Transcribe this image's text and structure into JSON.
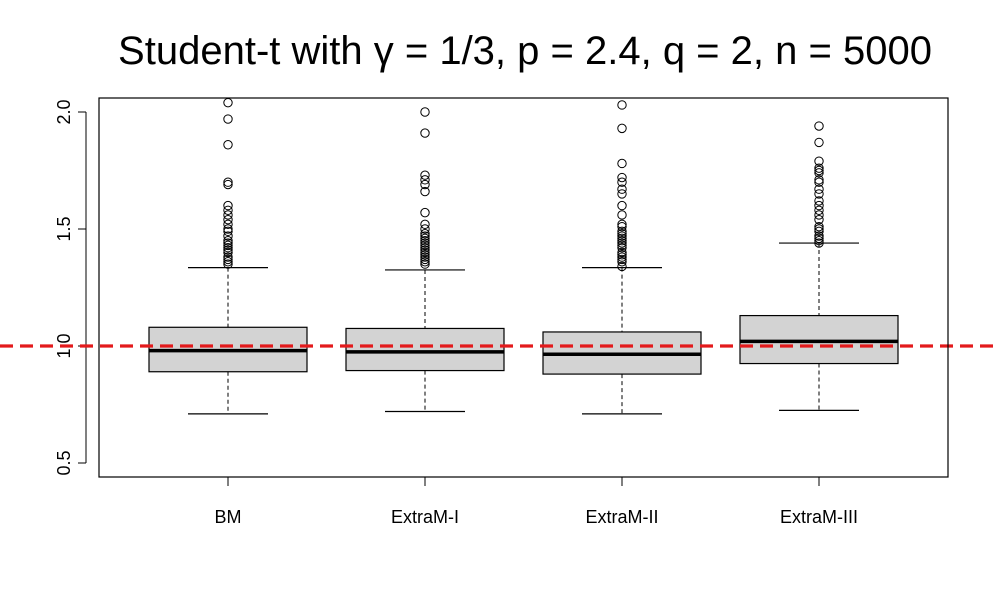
{
  "chart_data": {
    "type": "box",
    "title": "Student-t with γ = 1/3, p = 2.4, q = 2, n = 5000",
    "xlabel": "",
    "ylabel": "",
    "ylim": [
      0.5,
      2.05
    ],
    "yticks": [
      "0.5",
      "1.0",
      "1.5",
      "2.0"
    ],
    "categories": [
      "BM",
      "ExtraM-I",
      "ExtraM-II",
      "ExtraM-III"
    ],
    "reference_line": {
      "y": 1.0,
      "color": "#e31a1c",
      "style": "dashed"
    },
    "box_fill": "#d3d3d3",
    "boxes": [
      {
        "name": "BM",
        "whisker_low": 0.71,
        "q1": 0.89,
        "median": 0.98,
        "q3": 1.08,
        "whisker_high": 1.335,
        "outliers": [
          1.35,
          1.36,
          1.37,
          1.38,
          1.4,
          1.41,
          1.42,
          1.43,
          1.44,
          1.45,
          1.47,
          1.49,
          1.5,
          1.52,
          1.54,
          1.56,
          1.58,
          1.6,
          1.69,
          1.7,
          1.86,
          1.97,
          2.04
        ]
      },
      {
        "name": "ExtraM-I",
        "whisker_low": 0.72,
        "q1": 0.895,
        "median": 0.975,
        "q3": 1.075,
        "whisker_high": 1.325,
        "outliers": [
          1.35,
          1.36,
          1.37,
          1.38,
          1.39,
          1.4,
          1.41,
          1.42,
          1.43,
          1.44,
          1.45,
          1.46,
          1.47,
          1.48,
          1.5,
          1.52,
          1.57,
          1.66,
          1.69,
          1.71,
          1.73,
          1.91,
          2.0
        ]
      },
      {
        "name": "ExtraM-II",
        "whisker_low": 0.71,
        "q1": 0.88,
        "median": 0.965,
        "q3": 1.06,
        "whisker_high": 1.335,
        "outliers": [
          1.34,
          1.36,
          1.37,
          1.38,
          1.39,
          1.4,
          1.42,
          1.43,
          1.44,
          1.45,
          1.46,
          1.47,
          1.48,
          1.49,
          1.51,
          1.52,
          1.56,
          1.6,
          1.65,
          1.67,
          1.7,
          1.72,
          1.78,
          1.93,
          2.03
        ]
      },
      {
        "name": "ExtraM-III",
        "whisker_low": 0.725,
        "q1": 0.925,
        "median": 1.02,
        "q3": 1.13,
        "whisker_high": 1.44,
        "outliers": [
          1.44,
          1.45,
          1.46,
          1.47,
          1.49,
          1.5,
          1.51,
          1.54,
          1.56,
          1.58,
          1.6,
          1.62,
          1.65,
          1.67,
          1.7,
          1.71,
          1.74,
          1.75,
          1.76,
          1.79,
          1.87,
          1.94
        ]
      }
    ]
  }
}
